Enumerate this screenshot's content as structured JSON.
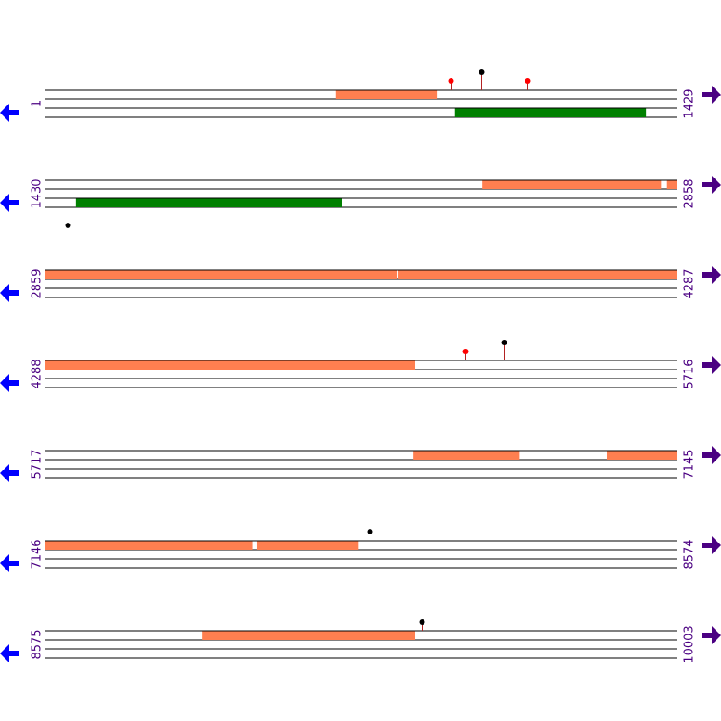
{
  "rows": [
    {
      "start": 1,
      "end": 1429,
      "features": [
        {
          "start": 659,
          "end": 887,
          "color": "#ff7f50",
          "strand": "top"
        },
        {
          "start": 928,
          "end": 1360,
          "color": "#008000",
          "strand": "bottom"
        }
      ],
      "pins": [
        {
          "pos": 918,
          "color": "#ff0000",
          "dir": "up"
        },
        {
          "pos": 987,
          "color": "#000000",
          "dir": "up"
        },
        {
          "pos": 1091,
          "color": "#ff0000",
          "dir": "up"
        }
      ]
    },
    {
      "start": 1430,
      "end": 2858,
      "features": [
        {
          "start": 2419,
          "end": 2822,
          "color": "#ff7f50",
          "strand": "top"
        },
        {
          "start": 2836,
          "end": 2858,
          "color": "#ff7f50",
          "strand": "top"
        },
        {
          "start": 1499,
          "end": 2101,
          "color": "#008000",
          "strand": "bottom"
        }
      ],
      "pins": [
        {
          "pos": 1481,
          "color": "#000000",
          "dir": "down"
        }
      ]
    },
    {
      "start": 2859,
      "end": 4287,
      "features": [
        {
          "start": 2859,
          "end": 3654,
          "color": "#ff7f50",
          "strand": "top"
        },
        {
          "start": 3658,
          "end": 4287,
          "color": "#ff7f50",
          "strand": "top"
        }
      ],
      "pins": []
    },
    {
      "start": 4288,
      "end": 5716,
      "features": [
        {
          "start": 4288,
          "end": 5124,
          "color": "#ff7f50",
          "strand": "top"
        }
      ],
      "pins": [
        {
          "pos": 5238,
          "color": "#ff0000",
          "dir": "up"
        },
        {
          "pos": 5326,
          "color": "#000000",
          "dir": "up"
        }
      ]
    },
    {
      "start": 5717,
      "end": 7145,
      "features": [
        {
          "start": 6549,
          "end": 6789,
          "color": "#ff7f50",
          "strand": "top"
        },
        {
          "start": 6989,
          "end": 7145,
          "color": "#ff7f50",
          "strand": "top"
        }
      ],
      "pins": []
    },
    {
      "start": 7146,
      "end": 8574,
      "features": [
        {
          "start": 7146,
          "end": 7615,
          "color": "#ff7f50",
          "strand": "top"
        },
        {
          "start": 7625,
          "end": 7853,
          "color": "#ff7f50",
          "strand": "top"
        }
      ],
      "pins": [
        {
          "pos": 7880,
          "color": "#000000",
          "dir": "up"
        }
      ]
    },
    {
      "start": 8575,
      "end": 10003,
      "features": [
        {
          "start": 8930,
          "end": 9411,
          "color": "#ff7f50",
          "strand": "top"
        }
      ],
      "pins": [
        {
          "pos": 9427,
          "color": "#000000",
          "dir": "up"
        }
      ]
    }
  ]
}
